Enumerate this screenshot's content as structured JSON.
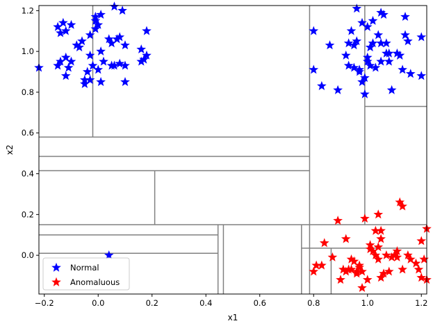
{
  "chart_data": {
    "type": "scatter",
    "xlabel": "x1",
    "ylabel": "x2",
    "xlim": [
      -0.22,
      1.22
    ],
    "ylim": [
      -0.19,
      1.225
    ],
    "x_ticks": [
      -0.2,
      0.0,
      0.2,
      0.4,
      0.6,
      0.8,
      1.0,
      1.2
    ],
    "x_tick_labels": [
      "−0.2",
      "0.0",
      "0.2",
      "0.4",
      "0.6",
      "0.8",
      "1.0",
      "1.2"
    ],
    "y_ticks": [
      0.0,
      0.2,
      0.4,
      0.6,
      0.8,
      1.0,
      1.2
    ],
    "y_tick_labels": [
      "0.0",
      "0.2",
      "0.4",
      "0.6",
      "0.8",
      "1.0",
      "1.2"
    ],
    "legend": {
      "placement": "lower-left"
    },
    "partition_color": "#808080",
    "partition_lines": [
      [
        0.785,
        1.225,
        0.785,
        -0.19
      ],
      [
        -0.22,
        0.15,
        1.22,
        0.15
      ],
      [
        -0.02,
        1.225,
        -0.02,
        0.58
      ],
      [
        -0.22,
        0.58,
        0.785,
        0.58
      ],
      [
        -0.22,
        0.485,
        0.785,
        0.485
      ],
      [
        -0.22,
        0.415,
        0.785,
        0.415
      ],
      [
        0.21,
        0.415,
        0.21,
        0.15
      ],
      [
        0.99,
        1.225,
        0.99,
        0.15
      ],
      [
        0.99,
        0.73,
        1.22,
        0.73
      ],
      [
        -0.22,
        0.1,
        0.445,
        0.1
      ],
      [
        -0.22,
        0.01,
        0.445,
        0.01
      ],
      [
        0.445,
        0.15,
        0.445,
        -0.19
      ],
      [
        0.465,
        0.15,
        0.465,
        -0.19
      ],
      [
        0.755,
        0.15,
        0.755,
        -0.19
      ],
      [
        0.755,
        0.035,
        1.22,
        0.035
      ],
      [
        0.865,
        0.035,
        0.865,
        -0.19
      ]
    ],
    "series": [
      {
        "name": "Normal",
        "color": "#0000ff",
        "points": [
          [
            -0.22,
            0.92
          ],
          [
            -0.15,
            1.12
          ],
          [
            -0.13,
            1.14
          ],
          [
            -0.12,
            1.1
          ],
          [
            -0.1,
            1.13
          ],
          [
            -0.14,
            1.09
          ],
          [
            -0.15,
            0.93
          ],
          [
            -0.14,
            0.95
          ],
          [
            -0.12,
            0.97
          ],
          [
            -0.1,
            0.95
          ],
          [
            -0.11,
            0.92
          ],
          [
            -0.12,
            0.88
          ],
          [
            -0.08,
            1.03
          ],
          [
            -0.07,
            1.02
          ],
          [
            -0.06,
            1.05
          ],
          [
            -0.05,
            0.84
          ],
          [
            -0.05,
            0.86
          ],
          [
            -0.04,
            0.9
          ],
          [
            -0.03,
            0.86
          ],
          [
            -0.03,
            0.98
          ],
          [
            -0.02,
            0.93
          ],
          [
            -0.01,
            1.11
          ],
          [
            -0.01,
            1.15
          ],
          [
            -0.01,
            1.17
          ],
          [
            0.0,
            1.13
          ],
          [
            0.0,
            0.91
          ],
          [
            0.01,
            0.85
          ],
          [
            0.01,
            1.18
          ],
          [
            0.01,
            1.0
          ],
          [
            0.02,
            0.95
          ],
          [
            -0.03,
            1.08
          ],
          [
            0.04,
            1.06
          ],
          [
            0.05,
            1.04
          ],
          [
            0.05,
            0.93
          ],
          [
            0.06,
            0.93
          ],
          [
            0.06,
            1.22
          ],
          [
            0.07,
            1.06
          ],
          [
            0.08,
            1.07
          ],
          [
            0.08,
            0.94
          ],
          [
            0.09,
            1.2
          ],
          [
            0.1,
            1.03
          ],
          [
            0.1,
            0.93
          ],
          [
            0.1,
            0.85
          ],
          [
            0.16,
            1.01
          ],
          [
            0.16,
            0.95
          ],
          [
            0.17,
            0.96
          ],
          [
            0.18,
            0.98
          ],
          [
            0.18,
            1.1
          ],
          [
            0.8,
            1.1
          ],
          [
            0.8,
            0.91
          ],
          [
            0.83,
            0.83
          ],
          [
            0.86,
            1.03
          ],
          [
            0.89,
            0.81
          ],
          [
            0.92,
            0.98
          ],
          [
            0.93,
            1.04
          ],
          [
            0.93,
            0.93
          ],
          [
            0.94,
            1.1
          ],
          [
            0.95,
            1.03
          ],
          [
            0.95,
            0.92
          ],
          [
            0.96,
            1.21
          ],
          [
            0.96,
            1.05
          ],
          [
            0.97,
            0.91
          ],
          [
            0.97,
            0.9
          ],
          [
            0.98,
            1.14
          ],
          [
            0.98,
            0.85
          ],
          [
            0.99,
            0.79
          ],
          [
            0.99,
            0.87
          ],
          [
            1.0,
            0.97
          ],
          [
            1.0,
            0.95
          ],
          [
            1.0,
            1.12
          ],
          [
            1.01,
            1.02
          ],
          [
            1.01,
            0.93
          ],
          [
            1.02,
            1.04
          ],
          [
            1.02,
            1.15
          ],
          [
            1.03,
            0.92
          ],
          [
            1.04,
            1.08
          ],
          [
            1.05,
            1.04
          ],
          [
            1.05,
            0.95
          ],
          [
            1.05,
            1.19
          ],
          [
            1.06,
            1.18
          ],
          [
            1.07,
            1.04
          ],
          [
            1.07,
            0.99
          ],
          [
            1.08,
            0.99
          ],
          [
            1.08,
            0.95
          ],
          [
            1.09,
            0.81
          ],
          [
            1.11,
            0.99
          ],
          [
            1.12,
            0.98
          ],
          [
            1.12,
            0.98
          ],
          [
            1.13,
            0.91
          ],
          [
            1.14,
            1.08
          ],
          [
            1.14,
            1.17
          ],
          [
            1.15,
            1.05
          ],
          [
            1.16,
            0.89
          ],
          [
            1.2,
            1.07
          ],
          [
            1.2,
            0.88
          ],
          [
            0.04,
            0.0
          ]
        ]
      },
      {
        "name": "Anomaluous",
        "color": "#ff0000",
        "points": [
          [
            0.8,
            -0.08
          ],
          [
            0.81,
            -0.05
          ],
          [
            0.83,
            -0.05
          ],
          [
            0.84,
            0.06
          ],
          [
            0.87,
            -0.01
          ],
          [
            0.89,
            0.17
          ],
          [
            0.9,
            -0.12
          ],
          [
            0.91,
            -0.07
          ],
          [
            0.92,
            0.08
          ],
          [
            0.92,
            -0.08
          ],
          [
            0.93,
            -0.07
          ],
          [
            0.94,
            -0.02
          ],
          [
            0.94,
            -0.07
          ],
          [
            0.95,
            -0.03
          ],
          [
            0.96,
            -0.08
          ],
          [
            0.96,
            -0.09
          ],
          [
            0.97,
            -0.05
          ],
          [
            0.97,
            -0.06
          ],
          [
            0.98,
            -0.16
          ],
          [
            0.98,
            -0.08
          ],
          [
            0.99,
            0.18
          ],
          [
            1.0,
            -0.12
          ],
          [
            1.01,
            0.03
          ],
          [
            1.01,
            0.05
          ],
          [
            1.02,
            0.02
          ],
          [
            1.03,
            0.0
          ],
          [
            1.03,
            0.12
          ],
          [
            1.04,
            -0.02
          ],
          [
            1.04,
            0.04
          ],
          [
            1.04,
            0.2
          ],
          [
            1.05,
            0.12
          ],
          [
            1.05,
            0.08
          ],
          [
            1.05,
            -0.11
          ],
          [
            1.06,
            -0.09
          ],
          [
            1.07,
            0.0
          ],
          [
            1.08,
            -0.08
          ],
          [
            1.09,
            -0.01
          ],
          [
            1.1,
            0.0
          ],
          [
            1.11,
            -0.01
          ],
          [
            1.11,
            0.02
          ],
          [
            1.12,
            0.26
          ],
          [
            1.13,
            0.24
          ],
          [
            1.13,
            -0.07
          ],
          [
            1.15,
            0.0
          ],
          [
            1.16,
            -0.02
          ],
          [
            1.18,
            -0.04
          ],
          [
            1.19,
            -0.07
          ],
          [
            1.2,
            0.07
          ],
          [
            1.2,
            -0.11
          ],
          [
            1.21,
            -0.02
          ],
          [
            1.22,
            -0.12
          ],
          [
            1.22,
            0.13
          ]
        ]
      }
    ]
  }
}
